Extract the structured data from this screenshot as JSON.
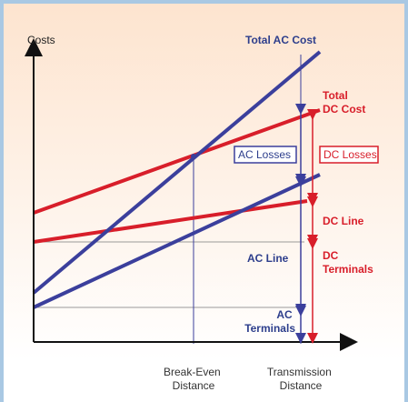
{
  "colors": {
    "ac_blue": "#3b3f9c",
    "dc_red": "#d81e2a",
    "frame_blue": "#a9c8e3",
    "bg_top": "#fde4cf",
    "bg_bottom": "#ffffff"
  },
  "axes": {
    "y_label": "Costs",
    "x_tick_break_even": "Break-Even\nDistance",
    "x_tick_transmission": "Transmission\nDistance"
  },
  "labels": {
    "total_ac_cost": "Total AC Cost",
    "total_dc_cost": "Total\nDC Cost",
    "ac_losses": "AC Losses",
    "dc_losses": "DC Losses",
    "dc_line": "DC Line",
    "ac_line": "AC Line",
    "dc_terminals": "DC\nTerminals",
    "ac_terminals": "AC\nTerminals"
  }
}
